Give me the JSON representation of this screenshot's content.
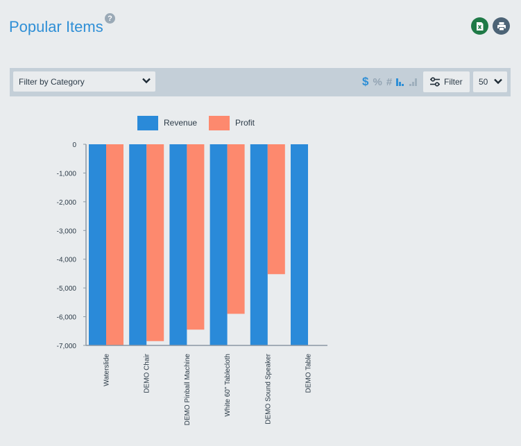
{
  "header": {
    "title": "Popular Items",
    "help_glyph": "?",
    "excel_icon": "excel-icon",
    "print_icon": "print-icon"
  },
  "toolbar": {
    "category_placeholder": "Filter by Category",
    "modes": {
      "dollar": "$",
      "percent": "%",
      "count": "#"
    },
    "filter_label": "Filter",
    "limit_value": "50"
  },
  "colors": {
    "accent": "#2f8fd6",
    "revenue": "#2a8ad9",
    "profit": "#fd896e"
  },
  "chart_data": {
    "type": "bar",
    "categories": [
      "Waterslide",
      "DEMO Chair",
      "DEMO Pinball Machine",
      "White 60\" Tablecloth",
      "DEMO Sound Speaker",
      "DEMO Table"
    ],
    "series": [
      {
        "name": "Revenue",
        "values": [
          -7000,
          -7000,
          -7000,
          -7000,
          -7000,
          -7000
        ]
      },
      {
        "name": "Profit",
        "values": [
          -7000,
          -6850,
          -6450,
          -5900,
          -4520,
          0
        ]
      }
    ],
    "ylim": [
      -7000,
      0
    ],
    "yticks": [
      "0",
      "-1,000",
      "-2,000",
      "-3,000",
      "-4,000",
      "-5,000",
      "-6,000",
      "-7,000"
    ],
    "ytick_values": [
      0,
      -1000,
      -2000,
      -3000,
      -4000,
      -5000,
      -6000,
      -7000
    ],
    "legend_position": "top",
    "grid": false
  }
}
